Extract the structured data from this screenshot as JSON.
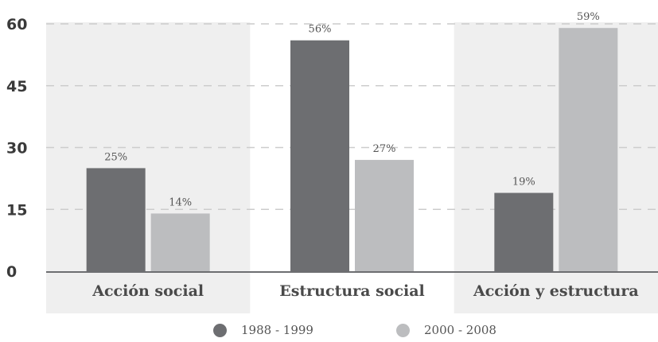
{
  "chart_data": {
    "type": "bar",
    "categories": [
      "Acción social",
      "Estructura social",
      "Acción y estructura"
    ],
    "series": [
      {
        "name": "1988 - 1999",
        "values": [
          25,
          56,
          19
        ],
        "labels": [
          "25%",
          "56%",
          "19%"
        ],
        "color": "#6d6e71"
      },
      {
        "name": "2000 - 2008",
        "values": [
          14,
          27,
          59
        ],
        "labels": [
          "14%",
          "27%",
          "59%"
        ],
        "color": "#bcbdbf"
      }
    ],
    "ylim": [
      0,
      60
    ],
    "yticks": [
      0,
      15,
      30,
      45,
      60
    ],
    "ytick_labels": [
      "0",
      "15",
      "30",
      "45",
      "60"
    ],
    "grid": true,
    "legend_position": "bottom",
    "colors": {
      "band": "#efefef",
      "grid": "#cccccc",
      "axis": "#6d6e71"
    }
  }
}
